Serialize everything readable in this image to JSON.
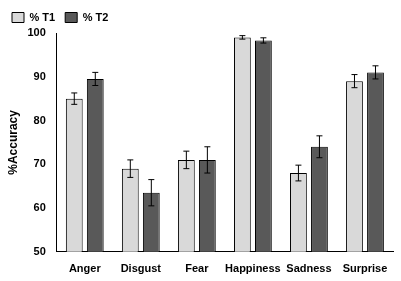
{
  "chart_data": {
    "type": "bar",
    "categories": [
      "Anger",
      "Disgust",
      "Fear",
      "Happiness",
      "Sadness",
      "Surprise"
    ],
    "series": [
      {
        "name": "% T1",
        "color": "#d9d9d9",
        "values": [
          85,
          69,
          71,
          99,
          68,
          89
        ],
        "errors": [
          1.3,
          2,
          2,
          0.4,
          1.8,
          1.5
        ]
      },
      {
        "name": "% T2",
        "color": "#595959",
        "values": [
          89.5,
          63.5,
          71,
          98.3,
          74,
          91
        ],
        "errors": [
          1.5,
          3,
          3,
          0.6,
          2.5,
          1.5
        ]
      }
    ],
    "y_label": "%Accuracy",
    "ylim": [
      50,
      100
    ],
    "yticks": [
      50,
      60,
      70,
      80,
      90,
      100
    ],
    "grid": false,
    "legend": "upper left"
  }
}
